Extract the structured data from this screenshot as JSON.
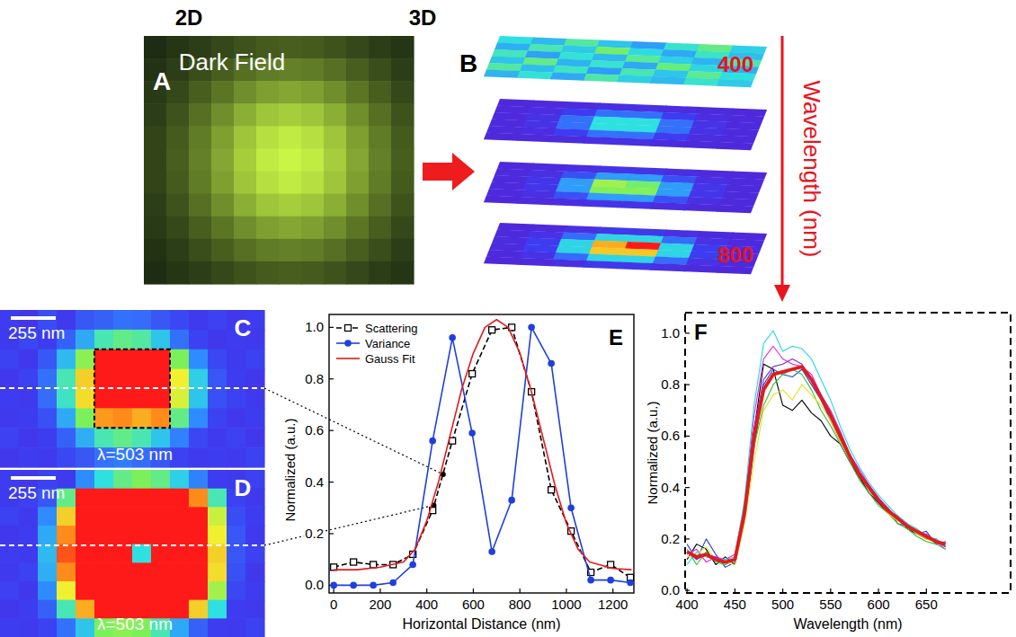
{
  "headers": {
    "left": "2D",
    "right": "3D"
  },
  "panel_a": {
    "letter": "A",
    "title": "Dark Field",
    "cells": [
      [
        0.01,
        0.03,
        0.05,
        0.08,
        0.12,
        0.15,
        0.16,
        0.15,
        0.12,
        0.08,
        0.05,
        0.03
      ],
      [
        0.02,
        0.05,
        0.1,
        0.16,
        0.23,
        0.29,
        0.31,
        0.29,
        0.23,
        0.16,
        0.1,
        0.05
      ],
      [
        0.04,
        0.08,
        0.16,
        0.26,
        0.38,
        0.47,
        0.51,
        0.47,
        0.38,
        0.26,
        0.16,
        0.08
      ],
      [
        0.05,
        0.12,
        0.23,
        0.38,
        0.55,
        0.69,
        0.74,
        0.69,
        0.55,
        0.38,
        0.23,
        0.12
      ],
      [
        0.07,
        0.15,
        0.29,
        0.47,
        0.69,
        0.86,
        0.93,
        0.86,
        0.69,
        0.47,
        0.29,
        0.15
      ],
      [
        0.07,
        0.16,
        0.31,
        0.51,
        0.74,
        0.93,
        1.0,
        0.93,
        0.74,
        0.51,
        0.31,
        0.16
      ],
      [
        0.07,
        0.15,
        0.29,
        0.47,
        0.69,
        0.86,
        0.93,
        0.86,
        0.69,
        0.47,
        0.29,
        0.15
      ],
      [
        0.05,
        0.12,
        0.23,
        0.38,
        0.55,
        0.69,
        0.74,
        0.69,
        0.55,
        0.38,
        0.23,
        0.12
      ],
      [
        0.04,
        0.08,
        0.16,
        0.26,
        0.38,
        0.47,
        0.51,
        0.47,
        0.38,
        0.26,
        0.16,
        0.08
      ],
      [
        0.02,
        0.05,
        0.1,
        0.16,
        0.23,
        0.29,
        0.31,
        0.29,
        0.23,
        0.16,
        0.1,
        0.05
      ],
      [
        0.01,
        0.03,
        0.05,
        0.08,
        0.12,
        0.15,
        0.16,
        0.15,
        0.12,
        0.08,
        0.05,
        0.03
      ]
    ]
  },
  "panel_b": {
    "letter": "B",
    "axis_title": "Wavelength (nm)",
    "axis_start": 400,
    "axis_end": 800,
    "layers": [
      [
        [
          0.45,
          0.38,
          0.52,
          0.4,
          0.33,
          0.47,
          0.55,
          0.42
        ],
        [
          0.36,
          0.5,
          0.41,
          0.58,
          0.44,
          0.35,
          0.48,
          0.39
        ],
        [
          0.49,
          0.34,
          0.46,
          0.38,
          0.53,
          0.42,
          0.37,
          0.51
        ],
        [
          0.4,
          0.55,
          0.37,
          0.47,
          0.35,
          0.56,
          0.43,
          0.36
        ],
        [
          0.52,
          0.39,
          0.48,
          0.33,
          0.5,
          0.4,
          0.54,
          0.45
        ],
        [
          0.37,
          0.46,
          0.35,
          0.51,
          0.42,
          0.38,
          0.47,
          0.41
        ]
      ],
      [
        [
          0.05,
          0.06,
          0.07,
          0.09,
          0.09,
          0.07,
          0.06,
          0.05
        ],
        [
          0.06,
          0.08,
          0.15,
          0.25,
          0.25,
          0.15,
          0.08,
          0.06
        ],
        [
          0.06,
          0.1,
          0.25,
          0.45,
          0.45,
          0.25,
          0.1,
          0.06
        ],
        [
          0.06,
          0.1,
          0.25,
          0.45,
          0.45,
          0.25,
          0.1,
          0.06
        ],
        [
          0.06,
          0.08,
          0.15,
          0.25,
          0.25,
          0.15,
          0.08,
          0.06
        ],
        [
          0.05,
          0.06,
          0.07,
          0.09,
          0.09,
          0.07,
          0.06,
          0.05
        ]
      ],
      [
        [
          0.05,
          0.06,
          0.08,
          0.11,
          0.11,
          0.08,
          0.06,
          0.05
        ],
        [
          0.06,
          0.09,
          0.19,
          0.33,
          0.33,
          0.19,
          0.09,
          0.06
        ],
        [
          0.06,
          0.12,
          0.33,
          0.65,
          0.58,
          0.33,
          0.12,
          0.06
        ],
        [
          0.06,
          0.12,
          0.33,
          0.61,
          0.61,
          0.33,
          0.12,
          0.06
        ],
        [
          0.06,
          0.09,
          0.19,
          0.33,
          0.33,
          0.19,
          0.09,
          0.06
        ],
        [
          0.05,
          0.06,
          0.08,
          0.11,
          0.11,
          0.08,
          0.06,
          0.05
        ]
      ],
      [
        [
          0.05,
          0.06,
          0.09,
          0.13,
          0.13,
          0.09,
          0.06,
          0.05
        ],
        [
          0.06,
          0.1,
          0.24,
          0.43,
          0.43,
          0.24,
          0.1,
          0.06
        ],
        [
          0.07,
          0.15,
          0.43,
          0.85,
          1.0,
          0.43,
          0.15,
          0.07
        ],
        [
          0.07,
          0.15,
          0.43,
          0.81,
          0.81,
          0.43,
          0.15,
          0.07
        ],
        [
          0.06,
          0.1,
          0.24,
          0.43,
          0.43,
          0.24,
          0.1,
          0.06
        ],
        [
          0.05,
          0.06,
          0.09,
          0.13,
          0.13,
          0.09,
          0.06,
          0.05
        ]
      ]
    ]
  },
  "panel_c": {
    "letter": "C",
    "scale_bar": "255 nm",
    "caption": "λ=503 nm",
    "cells": [
      [
        0.15,
        0.12,
        0.18,
        0.14,
        0.2,
        0.22,
        0.25,
        0.24,
        0.2,
        0.17,
        0.14,
        0.16,
        0.13,
        0.15
      ],
      [
        0.14,
        0.17,
        0.15,
        0.22,
        0.35,
        0.5,
        0.55,
        0.52,
        0.4,
        0.25,
        0.16,
        0.13,
        0.15,
        0.14
      ],
      [
        0.16,
        0.13,
        0.2,
        0.38,
        0.62,
        1.0,
        1.0,
        1.0,
        1.0,
        0.6,
        0.3,
        0.17,
        0.14,
        0.16
      ],
      [
        0.13,
        0.16,
        0.25,
        0.5,
        0.8,
        1.0,
        1.0,
        1.0,
        1.0,
        0.75,
        0.42,
        0.2,
        0.15,
        0.13
      ],
      [
        0.15,
        0.14,
        0.24,
        0.48,
        0.78,
        1.0,
        1.0,
        1.0,
        1.0,
        0.72,
        0.4,
        0.19,
        0.16,
        0.14
      ],
      [
        0.14,
        0.15,
        0.19,
        0.35,
        0.6,
        0.88,
        0.9,
        0.85,
        0.9,
        0.55,
        0.3,
        0.16,
        0.13,
        0.15
      ],
      [
        0.16,
        0.13,
        0.15,
        0.22,
        0.36,
        0.5,
        0.55,
        0.5,
        0.4,
        0.28,
        0.17,
        0.14,
        0.16,
        0.13
      ],
      [
        0.13,
        0.15,
        0.14,
        0.17,
        0.2,
        0.25,
        0.27,
        0.24,
        0.2,
        0.16,
        0.14,
        0.15,
        0.14,
        0.16
      ]
    ]
  },
  "panel_d": {
    "letter": "D",
    "scale_bar": "255 nm",
    "caption": "λ=503 nm",
    "cells": [
      [
        0.15,
        0.13,
        0.16,
        0.14,
        0.3,
        0.45,
        0.55,
        0.6,
        0.55,
        0.42,
        0.28,
        0.15,
        0.14,
        0.16
      ],
      [
        0.14,
        0.16,
        0.2,
        0.55,
        1.0,
        1.0,
        1.0,
        1.0,
        1.0,
        1.0,
        0.9,
        0.5,
        0.16,
        0.14
      ],
      [
        0.16,
        0.14,
        0.3,
        0.8,
        1.0,
        1.0,
        1.0,
        1.0,
        1.0,
        1.0,
        1.0,
        0.7,
        0.18,
        0.15
      ],
      [
        0.13,
        0.15,
        0.35,
        0.9,
        1.0,
        1.0,
        1.0,
        1.0,
        1.0,
        1.0,
        1.0,
        0.75,
        0.2,
        0.14
      ],
      [
        0.15,
        0.14,
        0.38,
        0.95,
        1.0,
        1.0,
        1.0,
        0.45,
        1.0,
        1.0,
        1.0,
        0.8,
        0.2,
        0.16
      ],
      [
        0.14,
        0.16,
        0.36,
        0.9,
        1.0,
        1.0,
        1.0,
        1.0,
        1.0,
        1.0,
        1.0,
        0.78,
        0.19,
        0.13
      ],
      [
        0.16,
        0.13,
        0.3,
        0.75,
        1.0,
        1.0,
        1.0,
        1.0,
        1.0,
        1.0,
        1.0,
        0.65,
        0.17,
        0.15
      ],
      [
        0.13,
        0.15,
        0.22,
        0.5,
        0.85,
        1.0,
        1.0,
        1.0,
        1.0,
        1.0,
        0.8,
        0.45,
        0.15,
        0.14
      ],
      [
        0.15,
        0.14,
        0.16,
        0.25,
        0.4,
        0.6,
        0.62,
        0.6,
        0.5,
        0.35,
        0.22,
        0.15,
        0.14,
        0.16
      ]
    ]
  },
  "chart_data": [
    {
      "type": "line",
      "letter": "E",
      "x_label": "Horizontal Distance (nm)",
      "y_label": "Normalized (a.u.)",
      "xlim": [
        -20,
        1290
      ],
      "ylim": [
        -0.03,
        1.05
      ],
      "xticks": [
        0,
        200,
        400,
        600,
        800,
        1000,
        1200
      ],
      "yticks": [
        {
          "value": 0,
          "label": "0.0"
        },
        {
          "value": 0.2,
          "label": "0.2"
        },
        {
          "value": 0.4,
          "label": "0.4"
        },
        {
          "value": 0.6,
          "label": "0.6"
        },
        {
          "value": 0.8,
          "label": "0.8"
        },
        {
          "value": 1.0,
          "label": "1.0"
        }
      ],
      "grid": false,
      "legend": "top-left",
      "series": [
        {
          "name": "Scattering",
          "color": "#000000",
          "marker": "square-open",
          "line_style": "dashed",
          "x": [
            0,
            85,
            170,
            255,
            340,
            425,
            510,
            595,
            680,
            765,
            850,
            935,
            1020,
            1105,
            1190,
            1275
          ],
          "values": [
            0.07,
            0.09,
            0.08,
            0.08,
            0.12,
            0.29,
            0.56,
            0.82,
            0.99,
            1.0,
            0.75,
            0.37,
            0.21,
            0.05,
            0.08,
            0.03
          ]
        },
        {
          "name": "Variance",
          "color": "#1f3fdc",
          "marker": "circle",
          "line_style": "solid",
          "x": [
            0,
            85,
            170,
            255,
            340,
            425,
            510,
            595,
            680,
            765,
            850,
            935,
            1020,
            1105,
            1190,
            1275
          ],
          "values": [
            0.0,
            0.0,
            0.0,
            0.01,
            0.08,
            0.56,
            0.96,
            0.59,
            0.13,
            0.33,
            1.0,
            0.86,
            0.3,
            0.02,
            0.02,
            0.01
          ]
        },
        {
          "name": "Gauss Fit",
          "color": "#e31a1c",
          "marker": "none",
          "line_style": "solid",
          "x": [
            0,
            100,
            200,
            300,
            350,
            400,
            450,
            500,
            550,
            600,
            650,
            700,
            750,
            800,
            850,
            900,
            950,
            1000,
            1050,
            1100,
            1200,
            1280
          ],
          "values": [
            0.06,
            0.06,
            0.07,
            0.09,
            0.14,
            0.25,
            0.4,
            0.58,
            0.76,
            0.9,
            1.0,
            1.03,
            1.0,
            0.9,
            0.75,
            0.57,
            0.39,
            0.24,
            0.14,
            0.09,
            0.065,
            0.06
          ]
        }
      ],
      "annotation_points": [
        {
          "x": 470,
          "y": 0.43
        },
        {
          "x": 430,
          "y": 0.31
        }
      ]
    },
    {
      "type": "line",
      "letter": "F",
      "x_label": "Wavelength (nm)",
      "y_label": "Normalized (a.u.)",
      "xlim": [
        398,
        738
      ],
      "ylim": [
        -0.01,
        1.08
      ],
      "xticks": [
        400,
        450,
        500,
        550,
        600,
        650
      ],
      "yticks": [
        {
          "value": 0,
          "label": "0.0"
        },
        {
          "value": 0.2,
          "label": "0.2"
        },
        {
          "value": 0.4,
          "label": "0.4"
        },
        {
          "value": 0.6,
          "label": "0.6"
        },
        {
          "value": 0.8,
          "label": "0.8"
        },
        {
          "value": 1.0,
          "label": "1.0"
        }
      ],
      "grid": false,
      "x": [
        400,
        410,
        420,
        430,
        440,
        450,
        460,
        470,
        480,
        490,
        500,
        510,
        520,
        530,
        540,
        550,
        560,
        570,
        580,
        590,
        600,
        610,
        620,
        630,
        640,
        650,
        660,
        670
      ],
      "series": [
        {
          "color": "#000000",
          "line_style": "solid",
          "values": [
            0.12,
            0.18,
            0.16,
            0.1,
            0.13,
            0.1,
            0.28,
            0.62,
            0.88,
            0.86,
            0.72,
            0.7,
            0.74,
            0.69,
            0.66,
            0.6,
            0.57,
            0.5,
            0.44,
            0.38,
            0.34,
            0.3,
            0.29,
            0.24,
            0.22,
            0.2,
            0.2,
            0.17
          ]
        },
        {
          "color": "#1f3fdc",
          "line_style": "solid",
          "values": [
            0.18,
            0.12,
            0.2,
            0.14,
            0.09,
            0.11,
            0.27,
            0.55,
            0.8,
            0.86,
            0.84,
            0.83,
            0.86,
            0.8,
            0.74,
            0.66,
            0.58,
            0.53,
            0.44,
            0.4,
            0.34,
            0.32,
            0.26,
            0.25,
            0.22,
            0.23,
            0.18,
            0.19
          ]
        },
        {
          "color": "#e020e0",
          "line_style": "solid",
          "values": [
            0.14,
            0.16,
            0.11,
            0.13,
            0.12,
            0.14,
            0.33,
            0.68,
            0.9,
            0.95,
            0.9,
            0.88,
            0.87,
            0.84,
            0.76,
            0.7,
            0.62,
            0.53,
            0.47,
            0.41,
            0.36,
            0.31,
            0.29,
            0.26,
            0.22,
            0.22,
            0.19,
            0.16
          ]
        },
        {
          "color": "#20d8e8",
          "line_style": "solid",
          "values": [
            0.1,
            0.15,
            0.13,
            0.12,
            0.12,
            0.13,
            0.35,
            0.72,
            0.96,
            1.01,
            0.93,
            0.95,
            0.94,
            0.9,
            0.82,
            0.74,
            0.64,
            0.55,
            0.48,
            0.42,
            0.37,
            0.33,
            0.29,
            0.26,
            0.24,
            0.21,
            0.2,
            0.17
          ]
        },
        {
          "color": "#30c030",
          "line_style": "solid",
          "values": [
            0.16,
            0.1,
            0.15,
            0.11,
            0.1,
            0.12,
            0.28,
            0.56,
            0.72,
            0.8,
            0.84,
            0.86,
            0.84,
            0.78,
            0.7,
            0.64,
            0.57,
            0.5,
            0.43,
            0.38,
            0.33,
            0.3,
            0.26,
            0.24,
            0.21,
            0.19,
            0.18,
            0.16
          ]
        },
        {
          "color": "#e8e020",
          "line_style": "solid",
          "values": [
            0.13,
            0.14,
            0.17,
            0.12,
            0.11,
            0.1,
            0.26,
            0.5,
            0.7,
            0.76,
            0.78,
            0.74,
            0.8,
            0.76,
            0.72,
            0.66,
            0.58,
            0.52,
            0.46,
            0.4,
            0.35,
            0.3,
            0.27,
            0.25,
            0.22,
            0.2,
            0.19,
            0.18
          ]
        },
        {
          "color": "#7a30c8",
          "line_style": "solid",
          "values": [
            0.15,
            0.12,
            0.14,
            0.13,
            0.11,
            0.12,
            0.31,
            0.63,
            0.82,
            0.87,
            0.88,
            0.9,
            0.88,
            0.82,
            0.76,
            0.69,
            0.61,
            0.53,
            0.46,
            0.41,
            0.36,
            0.32,
            0.28,
            0.25,
            0.23,
            0.21,
            0.19,
            0.17
          ]
        },
        {
          "color": "#e31a1c",
          "line_style": "bold",
          "values": [
            0.15,
            0.13,
            0.14,
            0.12,
            0.11,
            0.12,
            0.3,
            0.6,
            0.78,
            0.84,
            0.85,
            0.86,
            0.87,
            0.82,
            0.75,
            0.68,
            0.6,
            0.52,
            0.45,
            0.4,
            0.35,
            0.31,
            0.28,
            0.25,
            0.23,
            0.21,
            0.19,
            0.18
          ]
        }
      ]
    }
  ]
}
